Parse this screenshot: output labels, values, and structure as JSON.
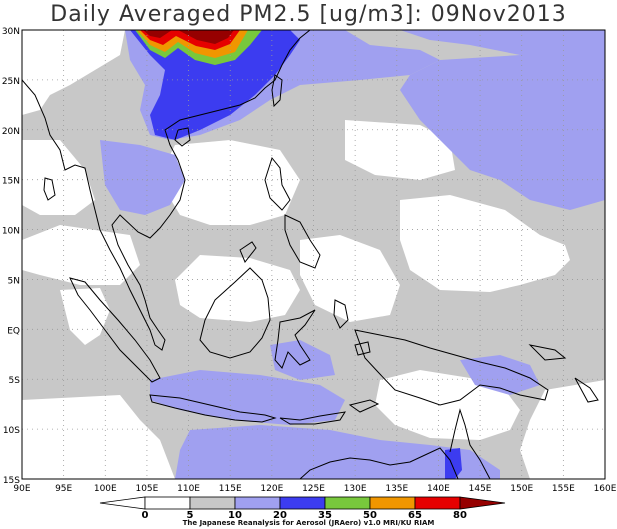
{
  "header": {
    "title": "Daily Averaged PM2.5 [ug/m3]: 09Nov2013"
  },
  "map": {
    "lat_labels": [
      "30N",
      "25N",
      "20N",
      "15N",
      "10N",
      "5N",
      "EQ",
      "5S",
      "10S",
      "15S"
    ],
    "lon_labels": [
      "90E",
      "95E",
      "100E",
      "105E",
      "110E",
      "115E",
      "120E",
      "125E",
      "130E",
      "135E",
      "140E",
      "145E",
      "150E",
      "155E",
      "160E"
    ],
    "lat_range": [
      -15,
      30
    ],
    "lon_range": [
      90,
      160
    ],
    "grid_step_deg": 5,
    "gridlines": true,
    "units": "ug/m3",
    "field_colors": {
      "0-5": "#ffffff",
      "5-10": "#ffffff",
      "10-20": "#c8c8c8",
      "20-35": "#a0a0f0",
      "35-50": "#3c3cf0",
      "50-65": "#78c83c",
      "65-80": "#f09600",
      "80+": "#960000"
    }
  },
  "colorbar": {
    "ticks": [
      "0",
      "5",
      "10",
      "20",
      "35",
      "50",
      "65",
      "80"
    ],
    "colors": [
      "#ffffff",
      "#ffffff",
      "#c8c8c8",
      "#a0a0f0",
      "#3c3cf0",
      "#78c83c",
      "#f09600",
      "#e60000",
      "#960000"
    ]
  },
  "footer": {
    "credit": "The Japanese Reanalysis for Aerosol (JRAero) v1.0 MRI/KU RIAM"
  }
}
